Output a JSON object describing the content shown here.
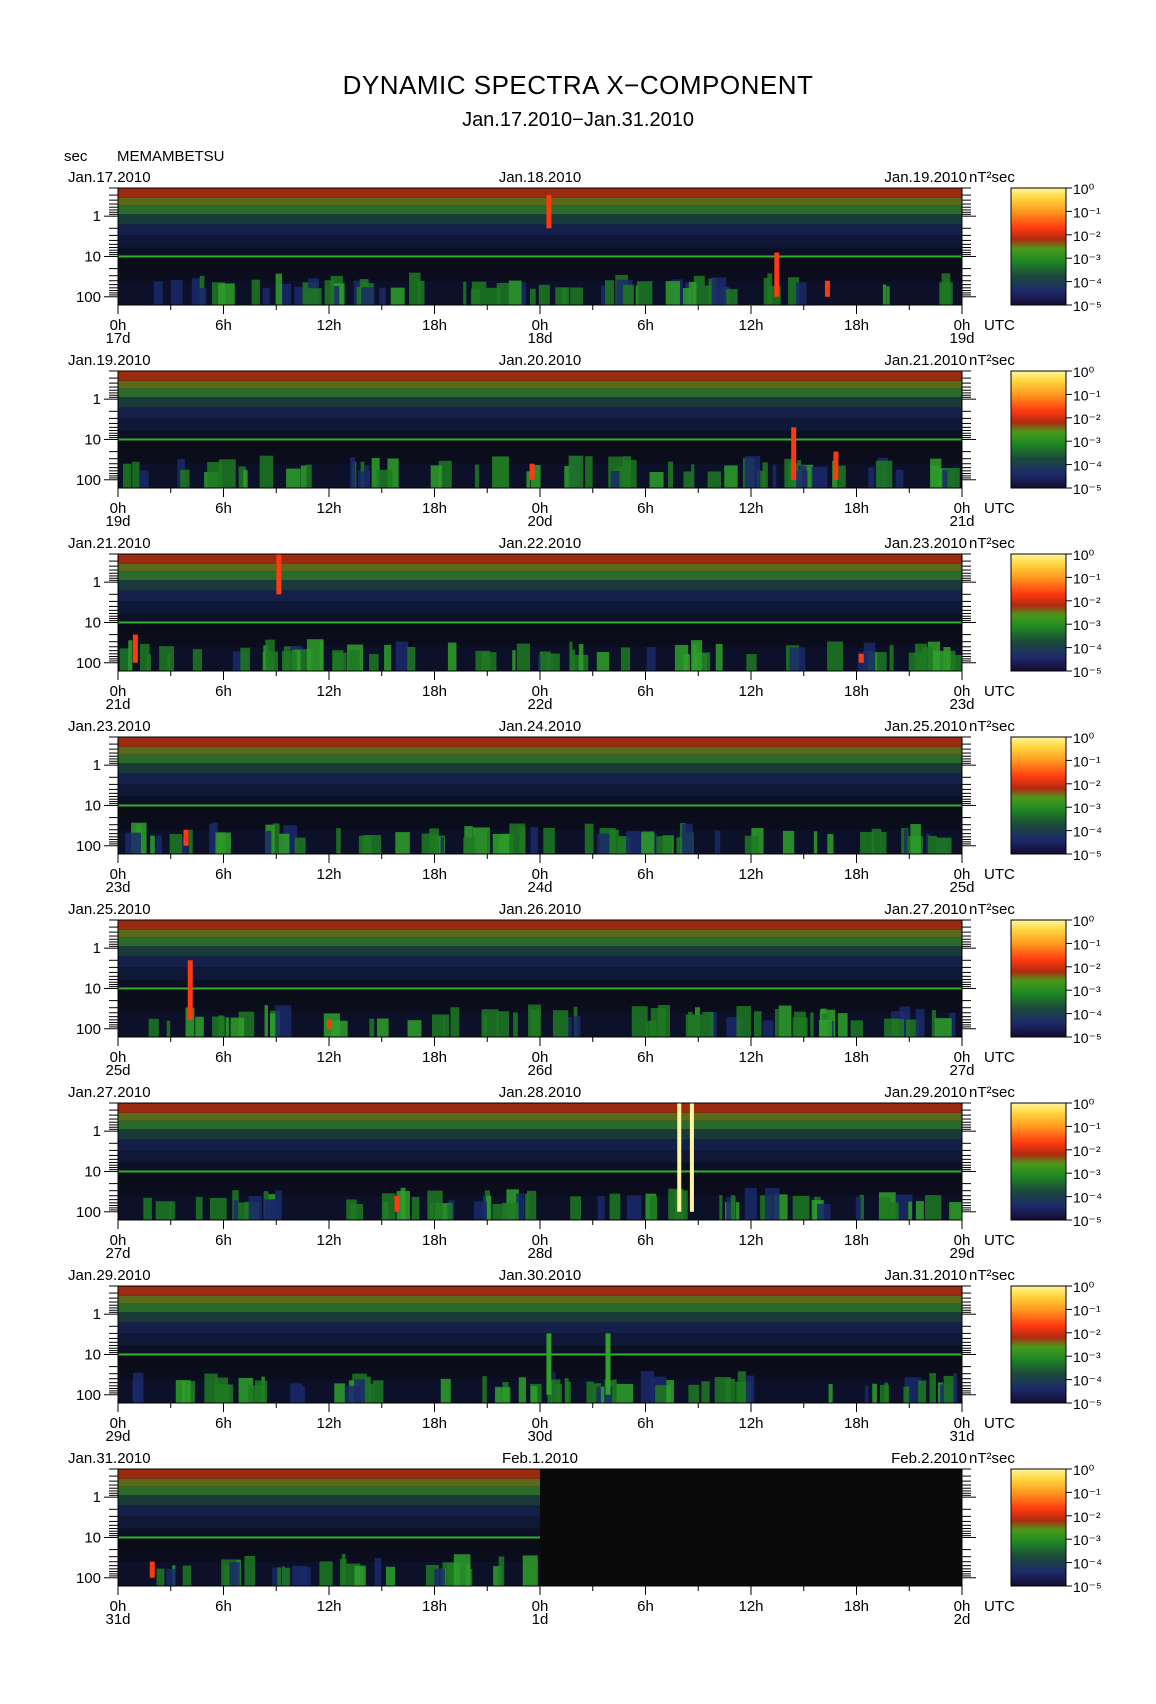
{
  "title": "DYNAMIC SPECTRA X−COMPONENT",
  "subtitle": "Jan.17.2010−Jan.31.2010",
  "y_unit": "sec",
  "station": "MEMAMBETSU",
  "colors": {
    "scale": [
      "#1a1240",
      "#1d2a6a",
      "#1f6a2a",
      "#2fa02a",
      "#8a8a10",
      "#d62a10",
      "#ff7a10",
      "#ffd020",
      "#fff090"
    ],
    "background": "#0a0a0a",
    "band_10s": "#2fb02f"
  },
  "chart_data": {
    "type": "heatmap",
    "quantity": "nT²sec",
    "ylim": [
      0.2,
      160
    ],
    "y_ticks": [
      "1",
      "10",
      "100"
    ],
    "x_ticks": [
      "0h",
      "6h",
      "12h",
      "18h",
      "0h",
      "6h",
      "12h",
      "18h",
      "0h"
    ],
    "x_unit": "UTC",
    "colorbar": {
      "label": "nT²sec",
      "ticks": [
        "10⁰",
        "10⁻¹",
        "10⁻²",
        "10⁻³",
        "10⁻⁴",
        "10⁻⁵"
      ]
    },
    "panels": [
      {
        "date_left": "Jan.17.2010",
        "date_mid": "Jan.18.2010",
        "date_right": "Jan.19.2010",
        "day_left": "17d",
        "day_mid": "18d",
        "day_right": "19d",
        "data_until": 1.0,
        "events": [
          {
            "t": 0.51,
            "period": [
              0.3,
              2
            ],
            "level": "high"
          },
          {
            "t": 0.78,
            "period": [
              8,
              100
            ],
            "level": "high"
          },
          {
            "t": 0.84,
            "period": [
              40,
              100
            ],
            "level": "high"
          }
        ]
      },
      {
        "date_left": "Jan.19.2010",
        "date_mid": "Jan.20.2010",
        "date_right": "Jan.21.2010",
        "day_left": "19d",
        "day_mid": "20d",
        "day_right": "21d",
        "data_until": 1.0,
        "events": [
          {
            "t": 0.8,
            "period": [
              5,
              100
            ],
            "level": "high"
          },
          {
            "t": 0.85,
            "period": [
              20,
              100
            ],
            "level": "high"
          },
          {
            "t": 0.49,
            "period": [
              40,
              100
            ],
            "level": "high"
          }
        ]
      },
      {
        "date_left": "Jan.21.2010",
        "date_mid": "Jan.22.2010",
        "date_right": "Jan.23.2010",
        "day_left": "21d",
        "day_mid": "22d",
        "day_right": "23d",
        "data_until": 1.0,
        "events": [
          {
            "t": 0.02,
            "period": [
              20,
              100
            ],
            "level": "high"
          },
          {
            "t": 0.19,
            "period": [
              0.2,
              2
            ],
            "level": "high"
          },
          {
            "t": 0.88,
            "period": [
              60,
              100
            ],
            "level": "high"
          }
        ]
      },
      {
        "date_left": "Jan.23.2010",
        "date_mid": "Jan.24.2010",
        "date_right": "Jan.25.2010",
        "day_left": "23d",
        "day_mid": "24d",
        "day_right": "25d",
        "data_until": 1.0,
        "events": [
          {
            "t": 0.08,
            "period": [
              40,
              100
            ],
            "level": "high"
          }
        ]
      },
      {
        "date_left": "Jan.25.2010",
        "date_mid": "Jan.26.2010",
        "date_right": "Jan.27.2010",
        "day_left": "25d",
        "day_mid": "26d",
        "day_right": "27d",
        "data_until": 1.0,
        "events": [
          {
            "t": 0.085,
            "period": [
              2,
              60
            ],
            "level": "high"
          },
          {
            "t": 0.25,
            "period": [
              60,
              100
            ],
            "level": "high"
          }
        ]
      },
      {
        "date_left": "Jan.27.2010",
        "date_mid": "Jan.28.2010",
        "date_right": "Jan.29.2010",
        "day_left": "27d",
        "day_mid": "28d",
        "day_right": "29d",
        "data_until": 1.0,
        "events": [
          {
            "t": 0.33,
            "period": [
              40,
              100
            ],
            "level": "high"
          },
          {
            "t": 0.665,
            "period": [
              0.2,
              100
            ],
            "level": "max"
          },
          {
            "t": 0.68,
            "period": [
              0.2,
              100
            ],
            "level": "max"
          }
        ]
      },
      {
        "date_left": "Jan.29.2010",
        "date_mid": "Jan.30.2010",
        "date_right": "Jan.31.2010",
        "day_left": "29d",
        "day_mid": "30d",
        "day_right": "31d",
        "data_until": 1.0,
        "events": [
          {
            "t": 0.51,
            "period": [
              3,
              100
            ],
            "level": "mid"
          },
          {
            "t": 0.58,
            "period": [
              3,
              100
            ],
            "level": "mid"
          }
        ]
      },
      {
        "date_left": "Jan.31.2010",
        "date_mid": "Feb.1.2010",
        "date_right": "Feb.2.2010",
        "day_left": "31d",
        "day_mid": "1d",
        "day_right": "2d",
        "data_until": 0.5,
        "events": [
          {
            "t": 0.04,
            "period": [
              40,
              100
            ],
            "level": "high"
          }
        ]
      }
    ]
  }
}
